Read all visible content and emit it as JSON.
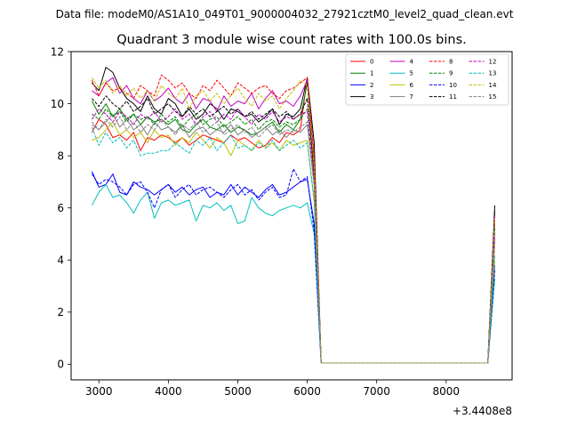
{
  "chart_data": {
    "type": "line",
    "suptitle": "Data file: modeM0/AS1A10_049T01_9000004032_27921cztM0_level2_quad_clean.evt",
    "title": "Quadrant 3 module wise count rates with 100.0s bins.",
    "xlabel": "",
    "ylabel": "",
    "x_offset_label": "+3.4408e8",
    "xlim": [
      2600,
      8950
    ],
    "ylim": [
      -0.6,
      12.0
    ],
    "xticks": [
      3000,
      4000,
      5000,
      6000,
      7000,
      8000
    ],
    "yticks": [
      0,
      2,
      4,
      6,
      8,
      10,
      12
    ],
    "grid": false,
    "legend": {
      "placement": "top-right",
      "columns": 4
    },
    "x": [
      2900,
      3000,
      3100,
      3200,
      3300,
      3400,
      3500,
      3600,
      3700,
      3800,
      3900,
      4000,
      4100,
      4200,
      4300,
      4400,
      4500,
      4600,
      4700,
      4800,
      4900,
      5000,
      5100,
      5200,
      5300,
      5400,
      5500,
      5600,
      5700,
      5800,
      5900,
      6000,
      6100,
      6200,
      6300,
      6400,
      6500,
      6600,
      6700,
      6800,
      6900,
      7000,
      7100,
      7200,
      7300,
      7400,
      7500,
      7600,
      7700,
      7800,
      7900,
      8000,
      8100,
      8200,
      8300,
      8400,
      8500,
      8600,
      8700
    ],
    "series": [
      {
        "name": "0",
        "color": "#ff0000",
        "dash": "solid",
        "values": [
          8.9,
          9.4,
          9.2,
          8.7,
          8.8,
          8.6,
          8.9,
          8.2,
          8.7,
          8.6,
          8.8,
          8.7,
          8.5,
          8.7,
          8.4,
          8.6,
          8.8,
          8.7,
          8.6,
          8.5,
          8.8,
          8.6,
          8.7,
          8.5,
          8.3,
          8.4,
          8.7,
          8.5,
          8.9,
          8.8,
          9.0,
          11.0,
          7.0,
          0.05,
          0.05,
          0.05,
          0.05,
          0.05,
          0.05,
          0.05,
          0.05,
          0.05,
          0.05,
          0.05,
          0.05,
          0.05,
          0.05,
          0.05,
          0.05,
          0.05,
          0.05,
          0.05,
          0.05,
          0.05,
          0.05,
          0.05,
          0.05,
          0.05,
          5.8
        ]
      },
      {
        "name": "1",
        "color": "#008000",
        "dash": "solid",
        "values": [
          10.1,
          9.6,
          10.0,
          9.5,
          9.8,
          9.4,
          9.6,
          9.2,
          9.5,
          9.3,
          9.4,
          9.2,
          9.4,
          9.0,
          8.9,
          9.2,
          9.4,
          9.1,
          9.0,
          9.2,
          8.9,
          9.1,
          9.0,
          8.8,
          8.9,
          9.1,
          9.3,
          8.9,
          9.2,
          9.0,
          9.4,
          10.8,
          7.6,
          0.05,
          0.05,
          0.05,
          0.05,
          0.05,
          0.05,
          0.05,
          0.05,
          0.05,
          0.05,
          0.05,
          0.05,
          0.05,
          0.05,
          0.05,
          0.05,
          0.05,
          0.05,
          0.05,
          0.05,
          0.05,
          0.05,
          0.05,
          0.05,
          0.05,
          5.9
        ]
      },
      {
        "name": "2",
        "color": "#0000ff",
        "dash": "solid",
        "values": [
          7.4,
          6.8,
          6.9,
          7.3,
          6.6,
          6.5,
          7.0,
          6.8,
          6.7,
          6.5,
          6.7,
          6.9,
          6.6,
          6.8,
          6.5,
          6.7,
          6.8,
          6.4,
          6.6,
          6.5,
          6.9,
          6.5,
          6.8,
          6.6,
          6.4,
          6.7,
          6.9,
          6.5,
          6.6,
          6.8,
          7.0,
          7.1,
          5.4,
          0.05,
          0.05,
          0.05,
          0.05,
          0.05,
          0.05,
          0.05,
          0.05,
          0.05,
          0.05,
          0.05,
          0.05,
          0.05,
          0.05,
          0.05,
          0.05,
          0.05,
          0.05,
          0.05,
          0.05,
          0.05,
          0.05,
          0.05,
          0.05,
          0.05,
          3.8
        ]
      },
      {
        "name": "3",
        "color": "#000000",
        "dash": "solid",
        "values": [
          10.8,
          10.5,
          11.4,
          11.2,
          10.6,
          10.2,
          10.0,
          9.7,
          10.3,
          9.8,
          9.6,
          10.2,
          10.0,
          9.5,
          9.8,
          9.4,
          9.6,
          10.0,
          9.8,
          9.4,
          9.8,
          9.7,
          9.5,
          9.6,
          9.3,
          9.5,
          9.8,
          9.2,
          9.6,
          9.5,
          9.8,
          11.0,
          8.5,
          0.05,
          0.05,
          0.05,
          0.05,
          0.05,
          0.05,
          0.05,
          0.05,
          0.05,
          0.05,
          0.05,
          0.05,
          0.05,
          0.05,
          0.05,
          0.05,
          0.05,
          0.05,
          0.05,
          0.05,
          0.05,
          0.05,
          0.05,
          0.05,
          0.05,
          6.1
        ]
      },
      {
        "name": "4",
        "color": "#bf00bf",
        "dash": "solid",
        "values": [
          10.5,
          10.3,
          10.8,
          11.0,
          10.4,
          10.7,
          10.2,
          10.0,
          10.5,
          10.1,
          10.3,
          10.6,
          10.2,
          10.0,
          10.4,
          9.8,
          10.2,
          10.1,
          9.7,
          10.3,
          9.9,
          10.1,
          10.0,
          10.4,
          9.8,
          10.2,
          10.5,
          10.0,
          10.1,
          9.9,
          10.3,
          10.9,
          7.8,
          0.05,
          0.05,
          0.05,
          0.05,
          0.05,
          0.05,
          0.05,
          0.05,
          0.05,
          0.05,
          0.05,
          0.05,
          0.05,
          0.05,
          0.05,
          0.05,
          0.05,
          0.05,
          0.05,
          0.05,
          0.05,
          0.05,
          0.05,
          0.05,
          0.05,
          5.7
        ]
      },
      {
        "name": "5",
        "color": "#00bfbf",
        "dash": "solid",
        "values": [
          6.1,
          6.6,
          6.9,
          6.4,
          6.5,
          6.2,
          5.8,
          6.3,
          6.6,
          5.6,
          6.2,
          6.3,
          6.1,
          6.2,
          6.3,
          5.5,
          6.1,
          6.0,
          6.2,
          5.9,
          6.1,
          5.4,
          5.5,
          6.4,
          6.0,
          5.8,
          5.7,
          5.9,
          6.0,
          6.1,
          6.0,
          6.2,
          5.0,
          0.05,
          0.05,
          0.05,
          0.05,
          0.05,
          0.05,
          0.05,
          0.05,
          0.05,
          0.05,
          0.05,
          0.05,
          0.05,
          0.05,
          0.05,
          0.05,
          0.05,
          0.05,
          0.05,
          0.05,
          0.05,
          0.05,
          0.05,
          0.05,
          0.05,
          3.3
        ]
      },
      {
        "name": "6",
        "color": "#bfbf00",
        "dash": "solid",
        "values": [
          8.6,
          8.7,
          9.0,
          9.3,
          8.8,
          9.0,
          8.7,
          8.9,
          8.5,
          9.0,
          8.7,
          8.8,
          8.4,
          8.7,
          8.5,
          8.9,
          8.6,
          8.3,
          8.7,
          8.5,
          8.0,
          8.6,
          8.4,
          8.2,
          8.6,
          8.3,
          8.5,
          8.2,
          8.6,
          8.4,
          8.5,
          8.6,
          6.2,
          0.05,
          0.05,
          0.05,
          0.05,
          0.05,
          0.05,
          0.05,
          0.05,
          0.05,
          0.05,
          0.05,
          0.05,
          0.05,
          0.05,
          0.05,
          0.05,
          0.05,
          0.05,
          0.05,
          0.05,
          0.05,
          0.05,
          0.05,
          0.05,
          0.05,
          4.0
        ]
      },
      {
        "name": "7",
        "color": "#808080",
        "dash": "solid",
        "values": [
          9.2,
          9.0,
          9.3,
          9.6,
          9.1,
          9.4,
          9.0,
          9.2,
          8.8,
          9.3,
          9.0,
          9.1,
          8.9,
          9.2,
          8.7,
          9.0,
          9.1,
          8.8,
          9.0,
          8.9,
          9.2,
          8.8,
          9.0,
          8.7,
          8.9,
          9.1,
          8.8,
          9.0,
          8.7,
          9.0,
          8.9,
          9.2,
          6.9,
          0.05,
          0.05,
          0.05,
          0.05,
          0.05,
          0.05,
          0.05,
          0.05,
          0.05,
          0.05,
          0.05,
          0.05,
          0.05,
          0.05,
          0.05,
          0.05,
          0.05,
          0.05,
          0.05,
          0.05,
          0.05,
          0.05,
          0.05,
          0.05,
          0.05,
          4.8
        ]
      },
      {
        "name": "8",
        "color": "#ff0000",
        "dash": "dashed",
        "values": [
          10.9,
          10.3,
          10.8,
          10.5,
          10.6,
          10.4,
          10.2,
          10.7,
          10.5,
          10.3,
          11.1,
          10.9,
          10.6,
          10.8,
          10.4,
          10.2,
          10.7,
          10.5,
          10.9,
          10.6,
          10.3,
          10.8,
          10.6,
          10.4,
          10.6,
          10.7,
          10.4,
          10.2,
          10.5,
          10.6,
          10.8,
          11.0,
          8.0,
          0.05,
          0.05,
          0.05,
          0.05,
          0.05,
          0.05,
          0.05,
          0.05,
          0.05,
          0.05,
          0.05,
          0.05,
          0.05,
          0.05,
          0.05,
          0.05,
          0.05,
          0.05,
          0.05,
          0.05,
          0.05,
          0.05,
          0.05,
          0.05,
          0.05,
          5.5
        ]
      },
      {
        "name": "9",
        "color": "#008000",
        "dash": "dashed",
        "values": [
          9.6,
          9.4,
          9.8,
          9.5,
          9.7,
          9.3,
          9.6,
          9.4,
          9.5,
          9.2,
          9.6,
          9.3,
          9.5,
          9.1,
          9.4,
          9.6,
          9.2,
          9.4,
          9.5,
          9.1,
          9.3,
          9.5,
          9.2,
          9.4,
          9.0,
          9.3,
          9.4,
          9.1,
          9.3,
          9.2,
          9.4,
          9.8,
          7.1,
          0.05,
          0.05,
          0.05,
          0.05,
          0.05,
          0.05,
          0.05,
          0.05,
          0.05,
          0.05,
          0.05,
          0.05,
          0.05,
          0.05,
          0.05,
          0.05,
          0.05,
          0.05,
          0.05,
          0.05,
          0.05,
          0.05,
          0.05,
          0.05,
          0.05,
          5.2
        ]
      },
      {
        "name": "10",
        "color": "#0000ff",
        "dash": "dashed",
        "values": [
          7.3,
          6.9,
          7.1,
          7.0,
          6.8,
          6.5,
          6.9,
          7.0,
          6.6,
          6.0,
          6.7,
          6.9,
          6.4,
          6.7,
          6.9,
          6.5,
          6.7,
          6.8,
          6.6,
          6.4,
          6.7,
          6.9,
          6.5,
          6.7,
          6.3,
          6.6,
          6.8,
          6.4,
          6.5,
          7.5,
          7.0,
          7.2,
          5.1,
          0.05,
          0.05,
          0.05,
          0.05,
          0.05,
          0.05,
          0.05,
          0.05,
          0.05,
          0.05,
          0.05,
          0.05,
          0.05,
          0.05,
          0.05,
          0.05,
          0.05,
          0.05,
          0.05,
          0.05,
          0.05,
          0.05,
          0.05,
          0.05,
          0.05,
          3.6
        ]
      },
      {
        "name": "11",
        "color": "#000000",
        "dash": "dashed",
        "values": [
          10.2,
          9.9,
          10.3,
          10.0,
          9.8,
          10.1,
          9.7,
          9.9,
          10.2,
          9.6,
          9.8,
          10.0,
          9.7,
          9.5,
          9.9,
          9.6,
          9.8,
          9.5,
          9.7,
          9.9,
          9.6,
          9.8,
          9.5,
          9.7,
          9.4,
          9.6,
          9.8,
          9.5,
          9.7,
          9.4,
          9.6,
          10.2,
          7.4,
          0.05,
          0.05,
          0.05,
          0.05,
          0.05,
          0.05,
          0.05,
          0.05,
          0.05,
          0.05,
          0.05,
          0.05,
          0.05,
          0.05,
          0.05,
          0.05,
          0.05,
          0.05,
          0.05,
          0.05,
          0.05,
          0.05,
          0.05,
          0.05,
          0.05,
          5.4
        ]
      },
      {
        "name": "12",
        "color": "#bf00bf",
        "dash": "dashed",
        "values": [
          9.4,
          9.8,
          9.6,
          9.3,
          9.7,
          9.5,
          9.2,
          9.6,
          9.4,
          9.7,
          9.3,
          9.5,
          9.8,
          9.4,
          9.6,
          9.2,
          9.5,
          9.7,
          9.3,
          9.6,
          9.4,
          9.8,
          9.5,
          9.2,
          9.6,
          9.4,
          9.7,
          9.3,
          9.5,
          9.4,
          9.6,
          9.7,
          7.0,
          0.05,
          0.05,
          0.05,
          0.05,
          0.05,
          0.05,
          0.05,
          0.05,
          0.05,
          0.05,
          0.05,
          0.05,
          0.05,
          0.05,
          0.05,
          0.05,
          0.05,
          0.05,
          0.05,
          0.05,
          0.05,
          0.05,
          0.05,
          0.05,
          0.05,
          5.0
        ]
      },
      {
        "name": "13",
        "color": "#00bfbf",
        "dash": "dashed",
        "values": [
          9.1,
          8.4,
          8.9,
          8.5,
          8.7,
          8.3,
          8.6,
          8.0,
          8.1,
          8.1,
          8.2,
          8.2,
          8.5,
          8.3,
          8.1,
          8.6,
          8.4,
          8.7,
          8.2,
          8.5,
          8.8,
          8.3,
          8.4,
          8.2,
          8.5,
          8.3,
          8.6,
          8.2,
          8.4,
          8.6,
          8.3,
          8.5,
          6.3,
          0.05,
          0.05,
          0.05,
          0.05,
          0.05,
          0.05,
          0.05,
          0.05,
          0.05,
          0.05,
          0.05,
          0.05,
          0.05,
          0.05,
          0.05,
          0.05,
          0.05,
          0.05,
          0.05,
          0.05,
          0.05,
          0.05,
          0.05,
          0.05,
          0.05,
          4.2
        ]
      },
      {
        "name": "14",
        "color": "#bfbf00",
        "dash": "dashed",
        "values": [
          11.0,
          10.6,
          10.9,
          10.4,
          10.7,
          10.3,
          10.6,
          10.2,
          10.5,
          10.1,
          10.7,
          10.4,
          10.2,
          10.6,
          9.8,
          10.3,
          10.5,
          10.1,
          10.4,
          10.0,
          10.3,
          10.6,
          10.2,
          9.9,
          10.4,
          10.1,
          10.3,
          9.8,
          10.2,
          10.5,
          10.9,
          10.7,
          7.6,
          0.05,
          0.05,
          0.05,
          0.05,
          0.05,
          0.05,
          0.05,
          0.05,
          0.05,
          0.05,
          0.05,
          0.05,
          0.05,
          0.05,
          0.05,
          0.05,
          0.05,
          0.05,
          0.05,
          0.05,
          0.05,
          0.05,
          0.05,
          0.05,
          0.05,
          5.6
        ]
      },
      {
        "name": "15",
        "color": "#808080",
        "dash": "dashed",
        "values": [
          9.3,
          9.0,
          9.4,
          9.1,
          9.5,
          9.0,
          9.3,
          8.9,
          9.2,
          9.0,
          9.4,
          9.1,
          8.8,
          9.2,
          9.0,
          9.3,
          8.9,
          9.1,
          9.3,
          8.8,
          9.0,
          9.2,
          8.9,
          9.1,
          8.7,
          9.0,
          9.2,
          8.8,
          9.0,
          8.9,
          9.1,
          9.3,
          6.8,
          0.05,
          0.05,
          0.05,
          0.05,
          0.05,
          0.05,
          0.05,
          0.05,
          0.05,
          0.05,
          0.05,
          0.05,
          0.05,
          0.05,
          0.05,
          0.05,
          0.05,
          0.05,
          0.05,
          0.05,
          0.05,
          0.05,
          0.05,
          0.05,
          0.05,
          4.6
        ]
      }
    ]
  }
}
